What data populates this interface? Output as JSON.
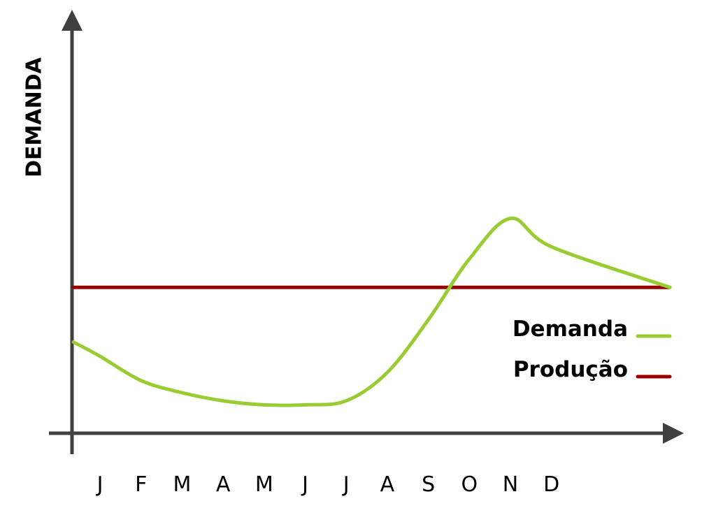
{
  "chart_data": {
    "type": "line",
    "title": "",
    "xlabel": "",
    "ylabel": "DEMANDA",
    "categories": [
      "J",
      "F",
      "M",
      "A",
      "M",
      "J",
      "J",
      "A",
      "S",
      "O",
      "N",
      "D"
    ],
    "series": [
      {
        "name": "Demanda",
        "color": "#99cc33",
        "values": [
          19,
          13,
          10,
          8,
          7,
          7,
          8,
          15,
          28,
          43,
          53,
          46
        ]
      },
      {
        "name": "Produção",
        "color": "#990000",
        "values": [
          36,
          36,
          36,
          36,
          36,
          36,
          36,
          36,
          36,
          36,
          36,
          36
        ]
      }
    ],
    "ylim": [
      0,
      100
    ],
    "grid": false,
    "legend_position": "right",
    "axis_color": "#404040"
  }
}
